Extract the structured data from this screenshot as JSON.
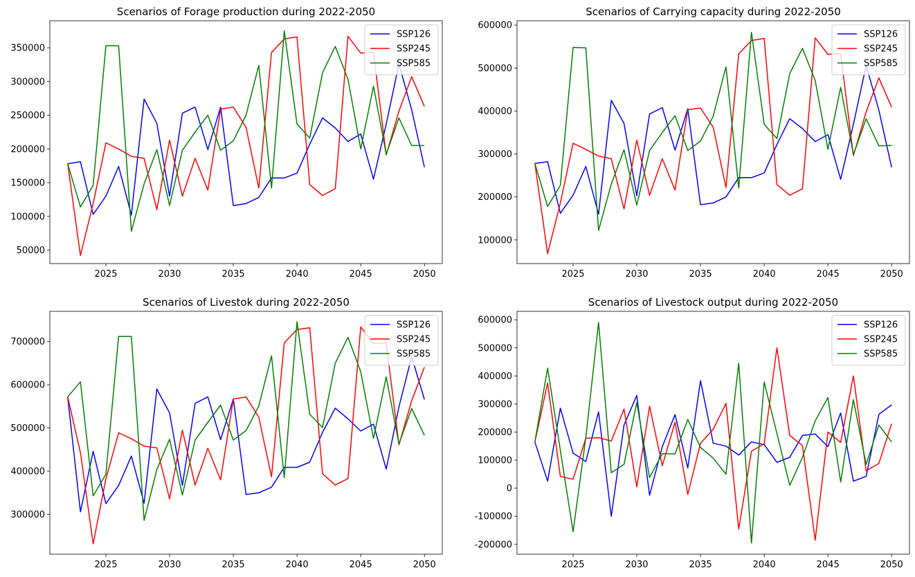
{
  "chart_data": [
    {
      "type": "line",
      "title": "Scenarios of Forage production during 2022-2050",
      "x": [
        2022,
        2023,
        2024,
        2025,
        2026,
        2027,
        2028,
        2029,
        2030,
        2031,
        2032,
        2033,
        2034,
        2035,
        2036,
        2037,
        2038,
        2039,
        2040,
        2041,
        2042,
        2043,
        2044,
        2045,
        2046,
        2047,
        2048,
        2049,
        2050
      ],
      "xticks": [
        2025,
        2030,
        2035,
        2040,
        2045,
        2050
      ],
      "xlim": [
        2020.6,
        2051.4
      ],
      "ylim": [
        30000,
        390000
      ],
      "yticks": [
        50000,
        100000,
        150000,
        200000,
        250000,
        300000,
        350000
      ],
      "legend": "upper right",
      "series": [
        {
          "name": "SSP126",
          "color": "#0000ff",
          "values": [
            178000,
            181000,
            103000,
            130000,
            174000,
            102000,
            274000,
            238000,
            130000,
            253000,
            262000,
            199000,
            262000,
            116000,
            119000,
            128000,
            157000,
            157000,
            164000,
            207000,
            246000,
            231000,
            211000,
            222000,
            155000,
            237000,
            326000,
            258000,
            173000
          ]
        },
        {
          "name": "SSP245",
          "color": "#ff0000",
          "values": [
            178000,
            42000,
            119000,
            209000,
            200000,
            189000,
            186000,
            110000,
            213000,
            130000,
            186000,
            139000,
            259000,
            262000,
            232000,
            142000,
            343000,
            363000,
            366000,
            147000,
            131000,
            141000,
            367000,
            342000,
            343000,
            191000,
            256000,
            307000,
            263000
          ]
        },
        {
          "name": "SSP585",
          "color": "#008000",
          "values": [
            178000,
            114000,
            146000,
            353000,
            353000,
            78000,
            148000,
            199000,
            116000,
            198000,
            225000,
            250000,
            198000,
            212000,
            250000,
            324000,
            142000,
            375000,
            237000,
            216000,
            313000,
            352000,
            303000,
            200000,
            293000,
            192000,
            246000,
            205000,
            205000
          ]
        }
      ]
    },
    {
      "type": "line",
      "title": "Scenarios of Carrying capacity during 2022-2050",
      "x": [
        2022,
        2023,
        2024,
        2025,
        2026,
        2027,
        2028,
        2029,
        2030,
        2031,
        2032,
        2033,
        2034,
        2035,
        2036,
        2037,
        2038,
        2039,
        2040,
        2041,
        2042,
        2043,
        2044,
        2045,
        2046,
        2047,
        2048,
        2049,
        2050
      ],
      "xticks": [
        2025,
        2030,
        2035,
        2040,
        2045,
        2050
      ],
      "xlim": [
        2020.6,
        2051.4
      ],
      "ylim": [
        45000,
        610000
      ],
      "yticks": [
        100000,
        200000,
        300000,
        400000,
        500000,
        600000
      ],
      "legend": "upper right",
      "series": [
        {
          "name": "SSP126",
          "color": "#0000ff",
          "values": [
            278000,
            282000,
            162000,
            204000,
            271000,
            160000,
            425000,
            371000,
            203000,
            393000,
            408000,
            309000,
            405000,
            182000,
            186000,
            200000,
            245000,
            245000,
            256000,
            322000,
            382000,
            359000,
            329000,
            345000,
            241000,
            369000,
            506000,
            402000,
            269000
          ]
        },
        {
          "name": "SSP245",
          "color": "#ff0000",
          "values": [
            278000,
            68000,
            186000,
            325000,
            311000,
            295000,
            289000,
            172000,
            332000,
            204000,
            289000,
            216000,
            403000,
            407000,
            362000,
            222000,
            533000,
            564000,
            569000,
            229000,
            204000,
            219000,
            570000,
            532000,
            533000,
            296000,
            398000,
            477000,
            409000
          ]
        },
        {
          "name": "SSP585",
          "color": "#008000",
          "values": [
            278000,
            178000,
            227000,
            548000,
            547000,
            122000,
            230000,
            310000,
            181000,
            308000,
            350000,
            389000,
            308000,
            330000,
            388000,
            503000,
            221000,
            583000,
            369000,
            336000,
            487000,
            546000,
            471000,
            311000,
            455000,
            299000,
            382000,
            319000,
            320000
          ]
        }
      ]
    },
    {
      "type": "line",
      "title": "Scenarios of Livestok during 2022-2050",
      "x": [
        2022,
        2023,
        2024,
        2025,
        2026,
        2027,
        2028,
        2029,
        2030,
        2031,
        2032,
        2033,
        2034,
        2035,
        2036,
        2037,
        2038,
        2039,
        2040,
        2041,
        2042,
        2043,
        2044,
        2045,
        2046,
        2047,
        2048,
        2049,
        2050
      ],
      "xticks": [
        2025,
        2030,
        2035,
        2040,
        2045,
        2050
      ],
      "xlim": [
        2020.6,
        2051.4
      ],
      "ylim": [
        208000,
        770000
      ],
      "yticks": [
        300000,
        400000,
        500000,
        600000,
        700000
      ],
      "legend": "upper right",
      "series": [
        {
          "name": "SSP126",
          "color": "#0000ff",
          "values": [
            572000,
            306000,
            446000,
            325000,
            367000,
            435000,
            326000,
            590000,
            535000,
            367000,
            557000,
            572000,
            473000,
            567000,
            346000,
            350000,
            363000,
            409000,
            409000,
            421000,
            490000,
            546000,
            521000,
            493000,
            509000,
            405000,
            549000,
            665000,
            566000
          ]
        },
        {
          "name": "SSP245",
          "color": "#ff0000",
          "values": [
            572000,
            443000,
            232000,
            382000,
            489000,
            475000,
            458000,
            454000,
            336000,
            495000,
            368000,
            453000,
            380000,
            567000,
            572000,
            525000,
            387000,
            697000,
            728000,
            732000,
            394000,
            368000,
            383000,
            734000,
            696000,
            697000,
            461000,
            563000,
            641000
          ]
        },
        {
          "name": "SSP585",
          "color": "#008000",
          "values": [
            572000,
            607000,
            343000,
            393000,
            712000,
            712000,
            286000,
            404000,
            474000,
            345000,
            472000,
            513000,
            553000,
            472000,
            494000,
            551000,
            667000,
            385000,
            746000,
            532000,
            501000,
            650000,
            710000,
            630000,
            476000,
            618000,
            463000,
            545000,
            483000
          ]
        }
      ]
    },
    {
      "type": "line",
      "title": "Scenarios of Livestock output during 2022-2050",
      "x": [
        2022,
        2023,
        2024,
        2025,
        2026,
        2027,
        2028,
        2029,
        2030,
        2031,
        2032,
        2033,
        2034,
        2035,
        2036,
        2037,
        2038,
        2039,
        2040,
        2041,
        2042,
        2043,
        2044,
        2045,
        2046,
        2047,
        2048,
        2049,
        2050
      ],
      "xticks": [
        2025,
        2030,
        2035,
        2040,
        2045,
        2050
      ],
      "xlim": [
        2020.6,
        2051.4
      ],
      "ylim": [
        -235000,
        630000
      ],
      "yticks": [
        -200000,
        -100000,
        0,
        100000,
        200000,
        300000,
        400000,
        500000,
        600000
      ],
      "legend": "upper right",
      "series": [
        {
          "name": "SSP126",
          "color": "#0000ff",
          "values": [
            165000,
            25000,
            285000,
            125000,
            95000,
            272000,
            -100000,
            225000,
            330000,
            -25000,
            148000,
            262000,
            72000,
            383000,
            160000,
            150000,
            118000,
            165000,
            155000,
            92000,
            110000,
            188000,
            193000,
            148000,
            268000,
            25000,
            42000,
            263000,
            297000
          ]
        },
        {
          "name": "SSP245",
          "color": "#ff0000",
          "values": [
            165000,
            375000,
            42000,
            32000,
            178000,
            180000,
            168000,
            282000,
            5000,
            292000,
            80000,
            235000,
            -22000,
            160000,
            210000,
            302000,
            -145000,
            132000,
            158000,
            500000,
            188000,
            152000,
            -185000,
            200000,
            163000,
            400000,
            62000,
            88000,
            230000
          ]
        },
        {
          "name": "SSP585",
          "color": "#008000",
          "values": [
            165000,
            428000,
            135000,
            -155000,
            180000,
            590000,
            55000,
            85000,
            305000,
            38000,
            123000,
            122000,
            245000,
            145000,
            107000,
            50000,
            445000,
            -195000,
            378000,
            195000,
            10000,
            110000,
            240000,
            323000,
            22000,
            315000,
            85000,
            225000,
            165000
          ]
        }
      ]
    }
  ]
}
